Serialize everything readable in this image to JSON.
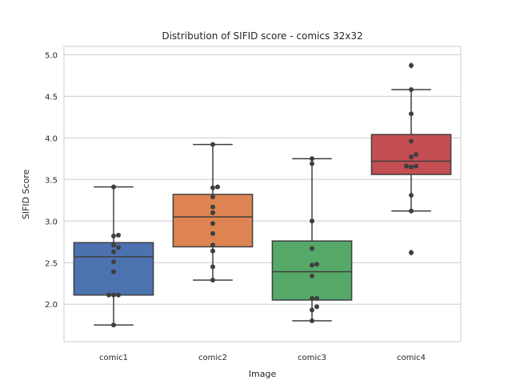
{
  "chart_data": {
    "type": "box",
    "title": "Distribution of SIFID score - comics 32x32",
    "xlabel": "Image",
    "ylabel": "SIFID Score",
    "ylim": [
      1.55,
      5.1
    ],
    "yticks": [
      "2.0",
      "2.5",
      "3.0",
      "3.5",
      "4.0",
      "4.5",
      "5.0"
    ],
    "grid": "horizontal",
    "categories": [
      "comic1",
      "comic2",
      "comic3",
      "comic4"
    ],
    "colors": [
      "#4c72b0",
      "#dd8452",
      "#55a868",
      "#c44e52"
    ],
    "boxes": [
      {
        "category": "comic1",
        "whisker_low": 1.75,
        "q1": 2.11,
        "median": 2.57,
        "q3": 2.74,
        "whisker_high": 3.41,
        "outliers": [],
        "points": [
          1.75,
          2.11,
          2.11,
          2.11,
          2.39,
          2.51,
          2.63,
          2.68,
          2.71,
          2.82,
          2.83,
          3.41
        ]
      },
      {
        "category": "comic2",
        "whisker_low": 2.29,
        "q1": 2.69,
        "median": 3.05,
        "q3": 3.32,
        "whisker_high": 3.92,
        "outliers": [],
        "points": [
          2.29,
          2.45,
          2.64,
          2.71,
          2.85,
          2.97,
          3.1,
          3.17,
          3.29,
          3.4,
          3.41,
          3.92
        ]
      },
      {
        "category": "comic3",
        "whisker_low": 1.8,
        "q1": 2.05,
        "median": 2.39,
        "q3": 2.76,
        "whisker_high": 3.75,
        "outliers": [],
        "points": [
          1.8,
          1.93,
          1.97,
          2.07,
          2.07,
          2.34,
          2.47,
          2.48,
          2.67,
          3.0,
          3.69,
          3.75
        ]
      },
      {
        "category": "comic4",
        "whisker_low": 3.12,
        "q1": 3.56,
        "median": 3.72,
        "q3": 4.04,
        "whisker_high": 4.58,
        "outliers": [
          2.62,
          4.87
        ],
        "points": [
          2.62,
          3.12,
          3.31,
          3.65,
          3.66,
          3.66,
          3.77,
          3.8,
          3.96,
          4.29,
          4.58,
          4.87
        ]
      }
    ]
  }
}
